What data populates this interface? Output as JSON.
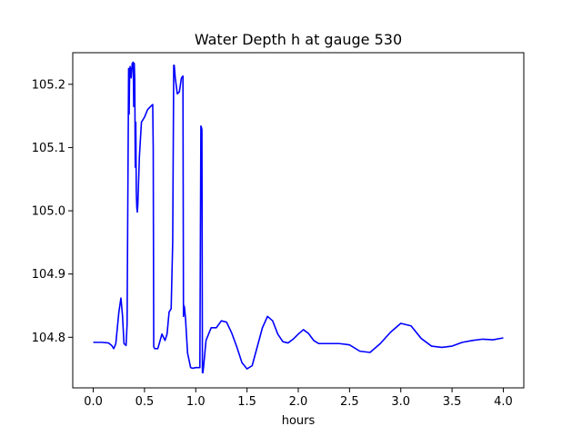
{
  "chart_data": {
    "type": "line",
    "title": "Water Depth h at gauge 530",
    "xlabel": "hours",
    "ylabel": "",
    "xlim": [
      -0.2,
      4.2
    ],
    "ylim": [
      104.72,
      105.25
    ],
    "xticks": [
      0.0,
      0.5,
      1.0,
      1.5,
      2.0,
      2.5,
      3.0,
      3.5,
      4.0
    ],
    "xtick_labels": [
      "0.0",
      "0.5",
      "1.0",
      "1.5",
      "2.0",
      "2.5",
      "3.0",
      "3.5",
      "4.0"
    ],
    "yticks": [
      104.8,
      104.9,
      105.0,
      105.1,
      105.2
    ],
    "ytick_labels": [
      "104.8",
      "104.9",
      "105.0",
      "105.1",
      "105.2"
    ],
    "grid": false,
    "line_color": "#0000ff",
    "series": [
      {
        "x": [
          0.0,
          0.08,
          0.15,
          0.18,
          0.2,
          0.22,
          0.25,
          0.27,
          0.285,
          0.3,
          0.32,
          0.33,
          0.345,
          0.35,
          0.355,
          0.36,
          0.37,
          0.38,
          0.39,
          0.395,
          0.4,
          0.405,
          0.41,
          0.415,
          0.42,
          0.425,
          0.43,
          0.435,
          0.45,
          0.47,
          0.5,
          0.53,
          0.56,
          0.58,
          0.585,
          0.59,
          0.6,
          0.63,
          0.67,
          0.7,
          0.72,
          0.74,
          0.76,
          0.775,
          0.785,
          0.79,
          0.8,
          0.82,
          0.84,
          0.86,
          0.875,
          0.88,
          0.885,
          0.89,
          0.9,
          0.92,
          0.95,
          0.97,
          1.0,
          1.04,
          1.05,
          1.055,
          1.06,
          1.065,
          1.07,
          1.08,
          1.1,
          1.15,
          1.2,
          1.25,
          1.3,
          1.35,
          1.4,
          1.45,
          1.5,
          1.55,
          1.6,
          1.65,
          1.7,
          1.75,
          1.8,
          1.85,
          1.9,
          1.95,
          2.0,
          2.05,
          2.1,
          2.15,
          2.2,
          2.3,
          2.4,
          2.5,
          2.6,
          2.7,
          2.8,
          2.9,
          3.0,
          3.1,
          3.2,
          3.3,
          3.4,
          3.5,
          3.6,
          3.7,
          3.8,
          3.9,
          4.0
        ],
        "y": [
          104.792,
          104.792,
          104.791,
          104.787,
          104.782,
          104.79,
          104.84,
          104.862,
          104.835,
          104.79,
          104.787,
          104.82,
          105.225,
          105.153,
          105.22,
          105.228,
          105.21,
          105.233,
          105.235,
          105.165,
          105.233,
          105.205,
          105.069,
          105.14,
          105.03,
          105.005,
          104.998,
          105.01,
          105.085,
          105.14,
          105.148,
          105.16,
          105.165,
          105.168,
          105.1,
          104.785,
          104.782,
          104.782,
          104.805,
          104.795,
          104.805,
          104.84,
          104.845,
          104.95,
          105.23,
          105.23,
          105.21,
          105.185,
          105.188,
          105.21,
          105.213,
          104.833,
          104.85,
          104.847,
          104.83,
          104.775,
          104.752,
          104.751,
          104.752,
          104.752,
          105.134,
          105.132,
          105.128,
          104.744,
          104.744,
          104.76,
          104.795,
          104.815,
          104.815,
          104.826,
          104.824,
          104.807,
          104.785,
          104.76,
          104.75,
          104.755,
          104.785,
          104.815,
          104.833,
          104.826,
          104.805,
          104.793,
          104.791,
          104.797,
          104.805,
          104.812,
          104.806,
          104.795,
          104.79,
          104.79,
          104.79,
          104.788,
          104.778,
          104.776,
          104.79,
          104.808,
          104.822,
          104.818,
          104.798,
          104.786,
          104.784,
          104.786,
          104.792,
          104.795,
          104.797,
          104.796,
          104.799
        ]
      }
    ]
  }
}
